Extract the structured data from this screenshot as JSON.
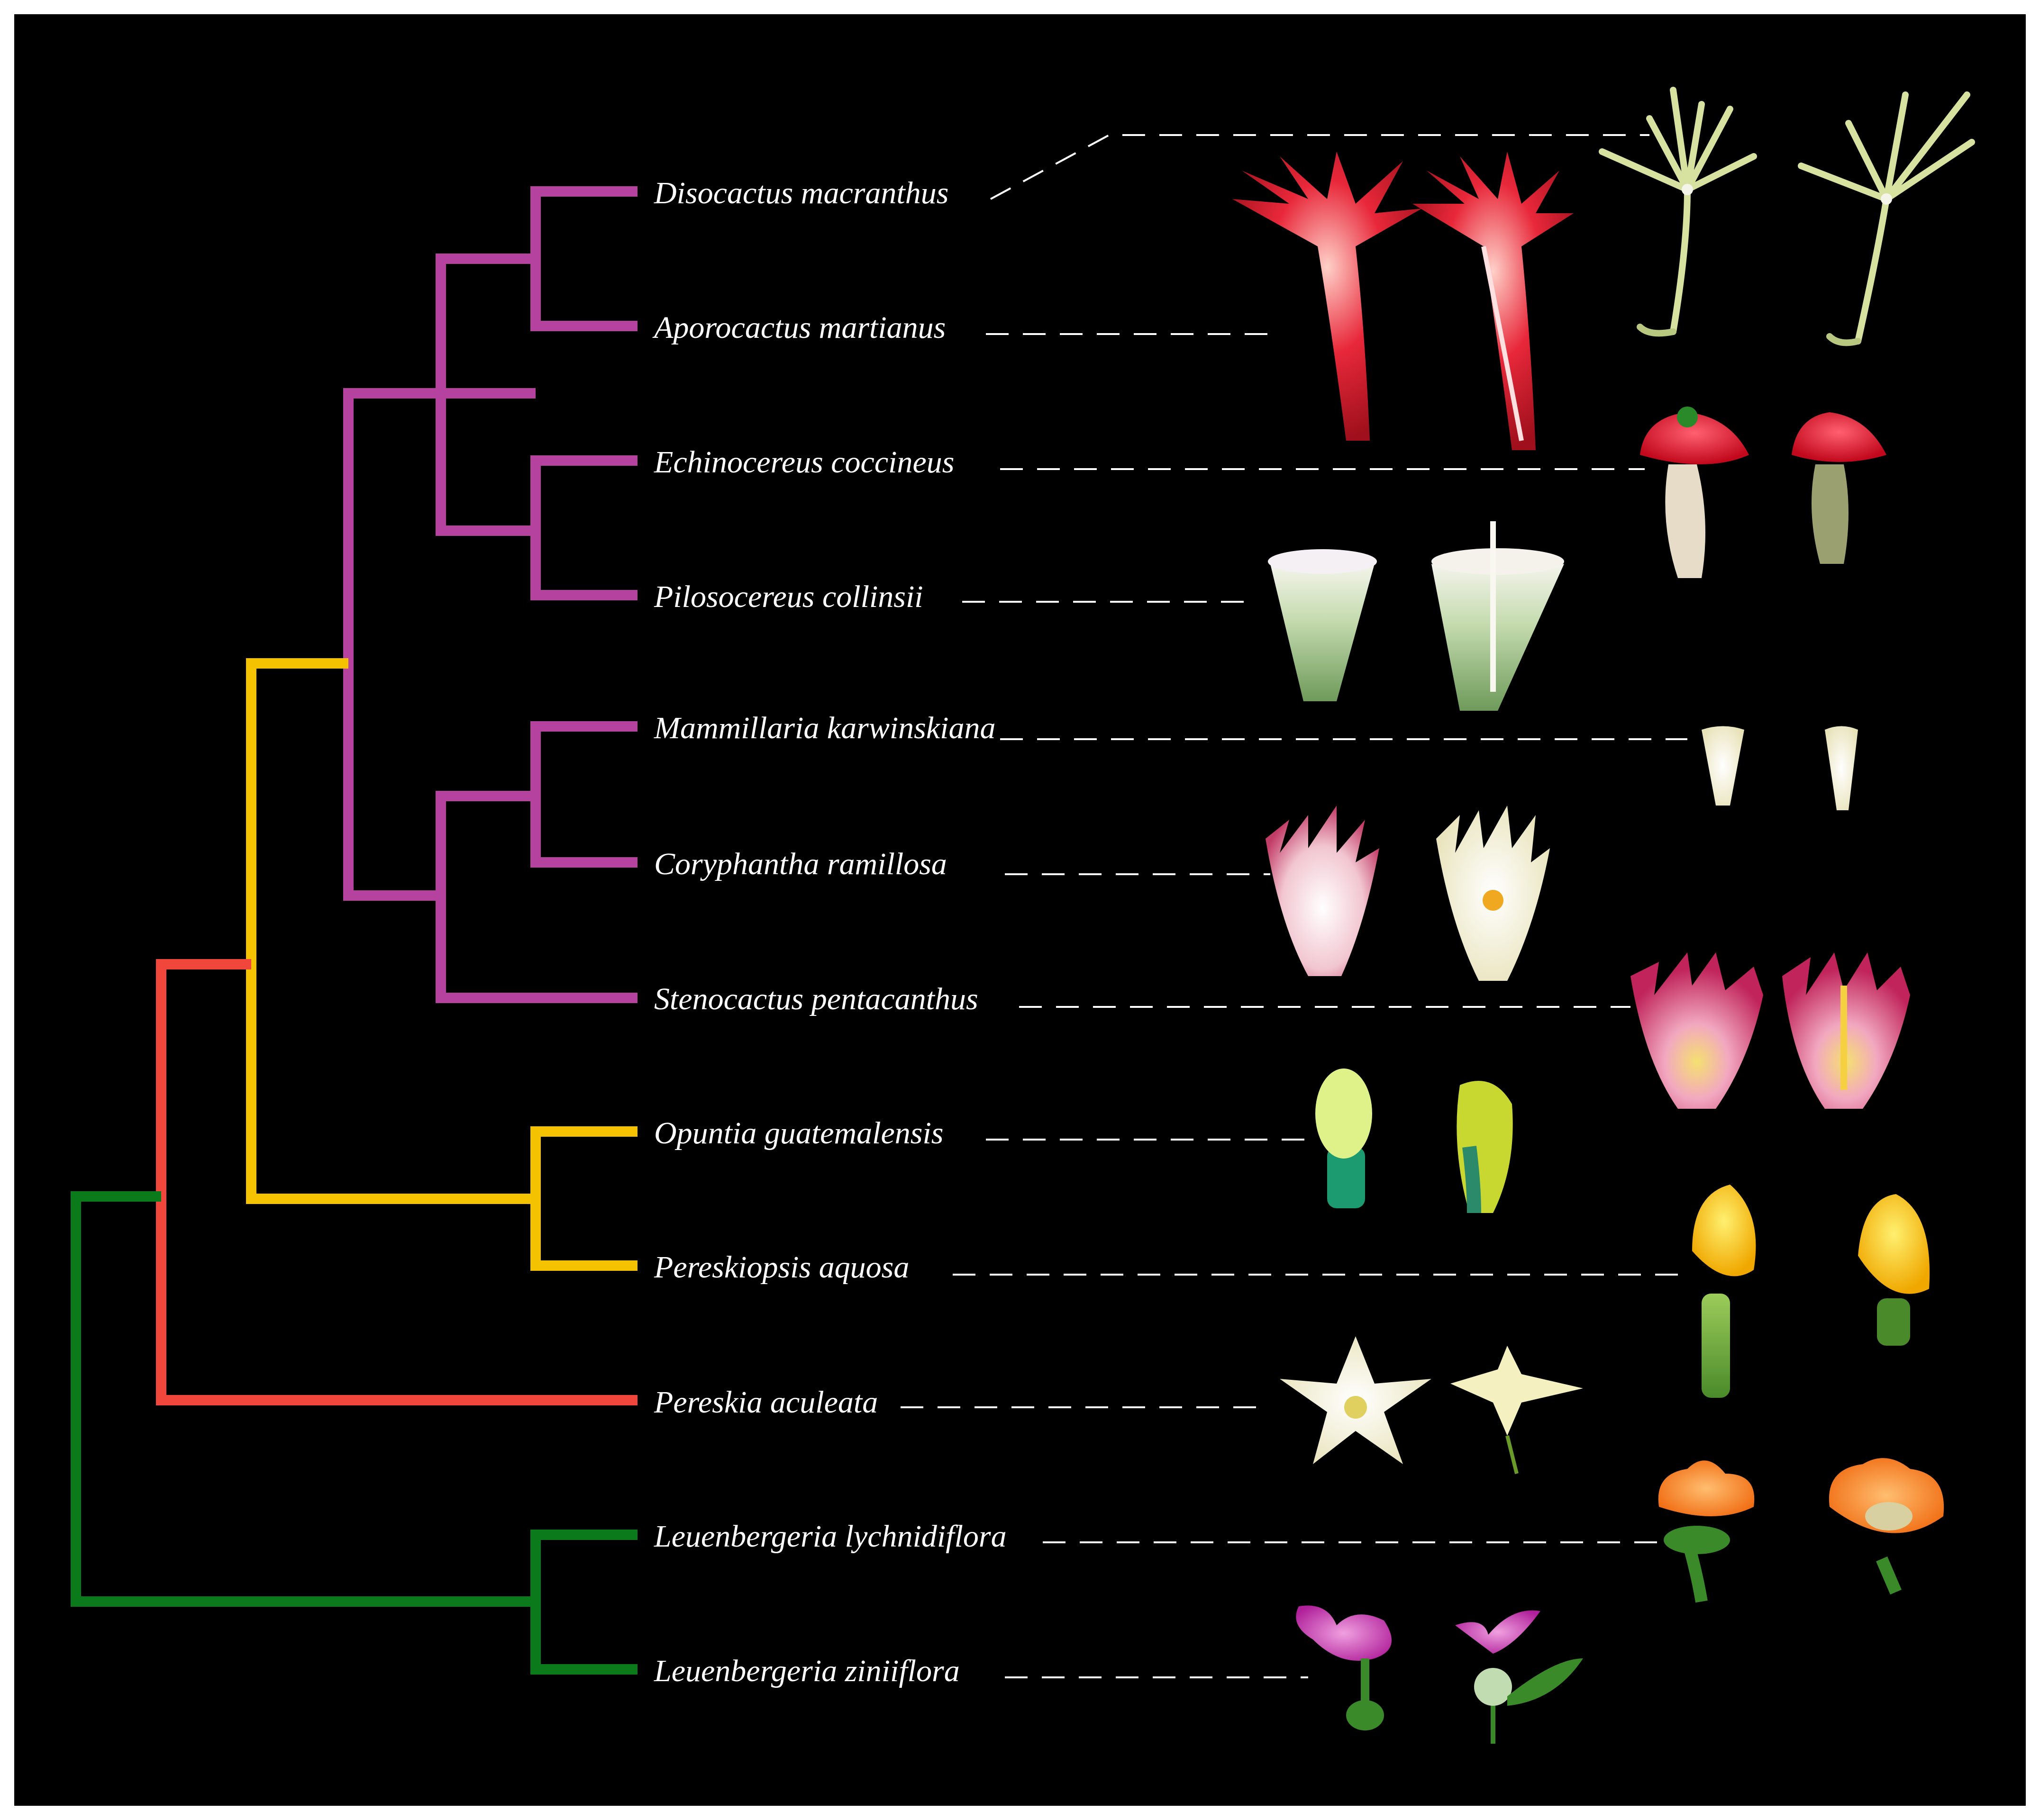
{
  "colors": {
    "background": "#000000",
    "clade_magenta": "#b5429f",
    "clade_yellow": "#f5c200",
    "clade_red": "#f0463c",
    "clade_green": "#0b7a1a"
  },
  "taxa": [
    {
      "name": "Disocactus macranthus",
      "clade": "magenta"
    },
    {
      "name": "Aporocactus martianus",
      "clade": "magenta"
    },
    {
      "name": "Echinocereus coccineus",
      "clade": "magenta"
    },
    {
      "name": "Pilosocereus collinsii",
      "clade": "magenta"
    },
    {
      "name": "Mammillaria karwinskiana",
      "clade": "magenta"
    },
    {
      "name": "Coryphantha ramillosa",
      "clade": "magenta"
    },
    {
      "name": "Stenocactus pentacanthus",
      "clade": "magenta"
    },
    {
      "name": "Opuntia guatemalensis",
      "clade": "yellow"
    },
    {
      "name": "Pereskiopsis aquosa",
      "clade": "yellow"
    },
    {
      "name": "Pereskia aculeata",
      "clade": "red"
    },
    {
      "name": "Leuenbergeria lychnidiflora",
      "clade": "green"
    },
    {
      "name": "Leuenbergeria ziniiflora",
      "clade": "green"
    }
  ],
  "flower_photos": [
    {
      "taxon": "Disocactus macranthus",
      "icon": "slender-yellow-green-flower-icon"
    },
    {
      "taxon": "Aporocactus martianus",
      "icon": "red-tubular-flower-icon"
    },
    {
      "taxon": "Echinocereus coccineus",
      "icon": "scarlet-cup-flower-icon"
    },
    {
      "taxon": "Pilosocereus collinsii",
      "icon": "green-white-bell-flower-icon"
    },
    {
      "taxon": "Mammillaria karwinskiana",
      "icon": "small-cream-flower-icon"
    },
    {
      "taxon": "Coryphantha ramillosa",
      "icon": "pink-white-flower-icon"
    },
    {
      "taxon": "Stenocactus pentacanthus",
      "icon": "striped-pink-flower-icon"
    },
    {
      "taxon": "Opuntia guatemalensis",
      "icon": "green-bud-flower-icon"
    },
    {
      "taxon": "Pereskiopsis aquosa",
      "icon": "yellow-flower-icon"
    },
    {
      "taxon": "Pereskia aculeata",
      "icon": "cream-star-flower-icon"
    },
    {
      "taxon": "Leuenbergeria lychnidiflora",
      "icon": "orange-ruffled-flower-icon"
    },
    {
      "taxon": "Leuenbergeria ziniiflora",
      "icon": "magenta-rose-flower-icon"
    }
  ]
}
